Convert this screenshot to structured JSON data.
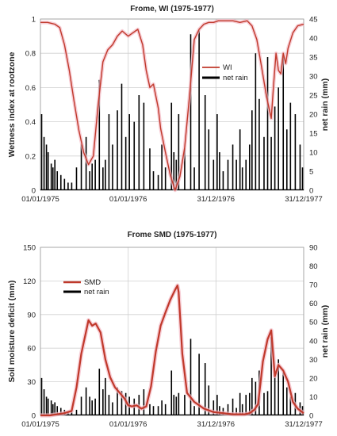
{
  "chart_data": [
    {
      "type": "line",
      "title": "Frome, WI (1975-1977)",
      "ylabel": "Wetness index at rootzone",
      "y2label": "net rain (mm)",
      "ylim": [
        0,
        1
      ],
      "y2lim": [
        0,
        45
      ],
      "yticks": [
        "0",
        "0.2",
        "0.4",
        "0.6",
        "0.8",
        "1"
      ],
      "y2ticks": [
        "0",
        "5",
        "10",
        "15",
        "20",
        "25",
        "30",
        "35",
        "40",
        "45"
      ],
      "xticks": [
        "01/01/1975",
        "01/01/1976",
        "31/12/1976",
        "31/12/1977"
      ],
      "x_axis_days": [
        0,
        1095
      ],
      "grid": true,
      "legend_position": "upper-middle",
      "series": [
        {
          "name": "WI",
          "axis": "left",
          "color": "#c0392b",
          "x_day": [
            0,
            30,
            60,
            80,
            100,
            120,
            140,
            160,
            180,
            200,
            220,
            240,
            260,
            280,
            300,
            320,
            340,
            365,
            385,
            405,
            425,
            440,
            455,
            470,
            490,
            500,
            520,
            540,
            560,
            580,
            600,
            620,
            640,
            660,
            680,
            700,
            720,
            740,
            750,
            770,
            800,
            830,
            860,
            880,
            900,
            920,
            940,
            960,
            970,
            980,
            990,
            1000,
            1010,
            1020,
            1030,
            1050,
            1070,
            1095
          ],
          "values": [
            0.98,
            0.98,
            0.97,
            0.95,
            0.85,
            0.7,
            0.52,
            0.35,
            0.22,
            0.15,
            0.2,
            0.5,
            0.75,
            0.82,
            0.85,
            0.9,
            0.93,
            0.9,
            0.92,
            0.94,
            0.85,
            0.7,
            0.6,
            0.62,
            0.48,
            0.36,
            0.22,
            0.09,
            0.0,
            0.08,
            0.25,
            0.55,
            0.88,
            0.94,
            0.97,
            0.98,
            0.98,
            0.99,
            0.99,
            0.99,
            0.99,
            0.98,
            0.99,
            0.96,
            0.88,
            0.72,
            0.55,
            0.42,
            0.62,
            0.8,
            0.7,
            0.68,
            0.8,
            0.74,
            0.83,
            0.92,
            0.96,
            0.97
          ]
        },
        {
          "name": "net rain",
          "axis": "right",
          "color": "#000000",
          "x_day": [
            5,
            15,
            25,
            32,
            45,
            52,
            60,
            70,
            85,
            100,
            115,
            130,
            150,
            170,
            190,
            205,
            215,
            228,
            245,
            260,
            270,
            285,
            300,
            320,
            338,
            355,
            370,
            390,
            410,
            430,
            455,
            470,
            490,
            505,
            520,
            545,
            555,
            565,
            575,
            600,
            625,
            640,
            660,
            685,
            700,
            720,
            735,
            745,
            760,
            780,
            800,
            815,
            830,
            840,
            855,
            870,
            880,
            895,
            910,
            930,
            945,
            960,
            975,
            990,
            1010,
            1025,
            1040,
            1060,
            1080,
            1090
          ],
          "values": [
            20,
            14,
            12,
            10,
            7,
            6,
            8,
            5,
            4,
            3,
            2,
            2,
            6,
            12,
            14,
            5,
            7,
            8,
            29,
            6,
            8,
            20,
            12,
            21,
            28,
            14,
            20,
            18,
            25,
            23,
            11,
            5,
            4,
            12,
            6,
            23,
            10,
            8,
            20,
            11,
            41,
            6,
            42,
            25,
            16,
            8,
            20,
            10,
            5,
            8,
            12,
            8,
            16,
            6,
            8,
            12,
            21,
            36,
            24,
            14,
            35,
            14,
            22,
            27,
            35,
            16,
            23,
            20,
            12,
            6
          ]
        }
      ]
    },
    {
      "type": "line",
      "title": "Frome SMD (1975-1977)",
      "ylabel": "Soil moisture deficit (mm)",
      "y2label": "net rain (mm)",
      "ylim": [
        0,
        150
      ],
      "y2lim": [
        0,
        90
      ],
      "yticks": [
        "0",
        "30",
        "60",
        "90",
        "120",
        "150"
      ],
      "y2ticks": [
        "0",
        "10",
        "20",
        "30",
        "40",
        "50",
        "60",
        "70",
        "80",
        "90"
      ],
      "xticks": [
        "01/01/1975",
        "01/01/1976",
        "31/12/1976",
        "31/12/1977"
      ],
      "x_axis_days": [
        0,
        1095
      ],
      "grid": true,
      "legend_position": "upper-left",
      "series": [
        {
          "name": "SMD",
          "axis": "left",
          "color": "#c0392b",
          "x_day": [
            0,
            40,
            70,
            100,
            130,
            150,
            170,
            190,
            200,
            215,
            230,
            250,
            270,
            290,
            310,
            330,
            350,
            365,
            380,
            400,
            420,
            440,
            460,
            480,
            500,
            520,
            540,
            560,
            570,
            575,
            590,
            610,
            640,
            680,
            720,
            760,
            800,
            830,
            850,
            870,
            890,
            905,
            915,
            925,
            935,
            945,
            960,
            975,
            990,
            1010,
            1030,
            1050,
            1070,
            1095
          ],
          "values": [
            0,
            0,
            1,
            2,
            4,
            25,
            55,
            75,
            85,
            80,
            82,
            74,
            50,
            34,
            25,
            20,
            15,
            9,
            8,
            9,
            6,
            8,
            26,
            57,
            80,
            92,
            103,
            112,
            116,
            110,
            55,
            20,
            12,
            6,
            3,
            2,
            1,
            1,
            1,
            2,
            5,
            10,
            28,
            48,
            58,
            68,
            76,
            35,
            45,
            40,
            30,
            12,
            6,
            2
          ]
        },
        {
          "name": "net rain",
          "axis": "right",
          "color": "#000000",
          "x_day": [
            5,
            15,
            25,
            32,
            45,
            52,
            60,
            70,
            85,
            100,
            115,
            130,
            150,
            170,
            190,
            205,
            215,
            228,
            245,
            260,
            270,
            285,
            300,
            320,
            338,
            355,
            370,
            390,
            410,
            430,
            455,
            470,
            490,
            505,
            520,
            545,
            555,
            565,
            575,
            600,
            625,
            640,
            660,
            685,
            700,
            720,
            735,
            745,
            760,
            780,
            800,
            815,
            830,
            840,
            855,
            870,
            880,
            895,
            910,
            930,
            945,
            960,
            975,
            990,
            1010,
            1025,
            1040,
            1060,
            1080,
            1090
          ],
          "values": [
            20,
            14,
            10,
            9,
            8,
            6,
            7,
            5,
            4,
            3,
            2,
            2,
            3,
            10,
            15,
            10,
            8,
            9,
            25,
            14,
            20,
            11,
            7,
            15,
            13,
            12,
            10,
            9,
            11,
            14,
            6,
            5,
            5,
            8,
            6,
            24,
            11,
            10,
            12,
            11,
            41,
            5,
            33,
            28,
            16,
            8,
            11,
            5,
            4,
            6,
            9,
            4,
            12,
            6,
            11,
            12,
            20,
            18,
            24,
            12,
            13,
            42,
            21,
            30,
            23,
            15,
            10,
            12,
            7,
            5
          ]
        }
      ]
    }
  ]
}
